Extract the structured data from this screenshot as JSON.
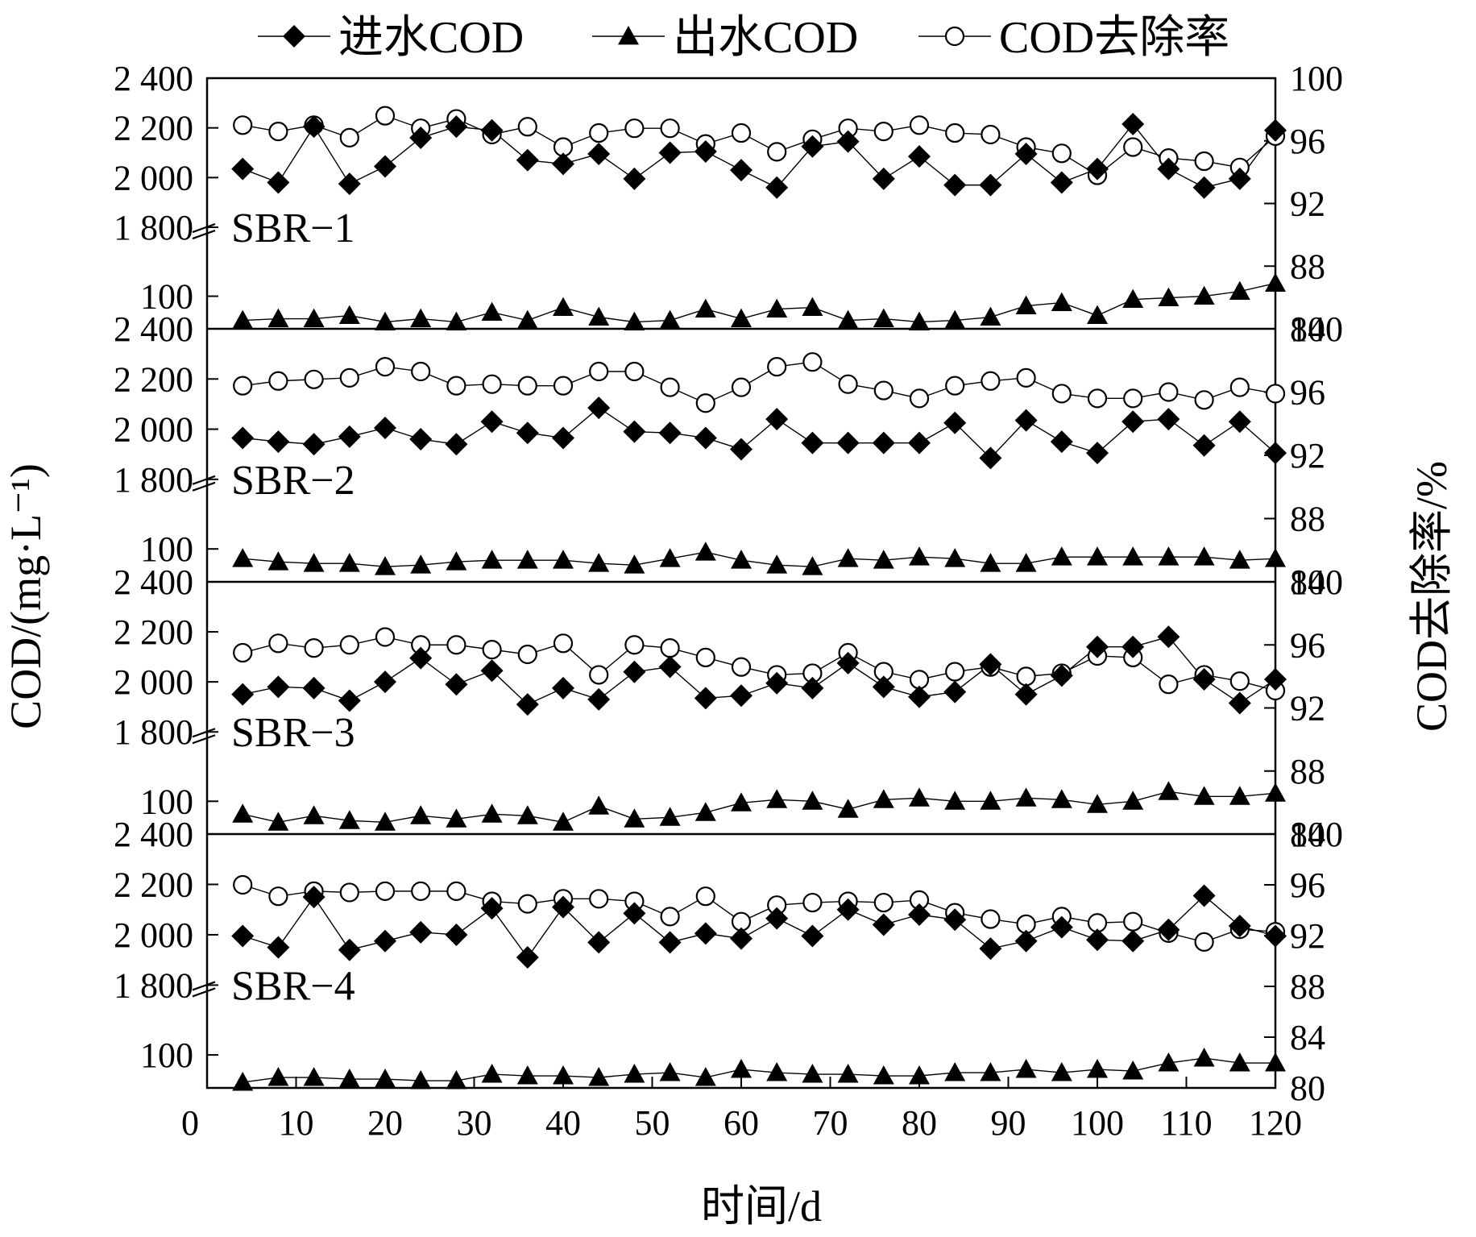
{
  "chart_data": {
    "type": "line",
    "x_axis": {
      "label": "时间/d",
      "range": [
        0,
        120
      ],
      "ticks": [
        0,
        10,
        20,
        30,
        40,
        50,
        60,
        70,
        80,
        90,
        100,
        110,
        120
      ],
      "tick_labels": [
        "0",
        "10",
        "20",
        "30",
        "40",
        "50",
        "60",
        "70",
        "80",
        "90",
        "100",
        "110",
        "120"
      ]
    },
    "y_axis_left": {
      "label": "COD/(mg·L⁻¹)",
      "broken": true,
      "tick_labels": [
        "100",
        "1 800",
        "2 000",
        "2 200",
        "2 400"
      ]
    },
    "y_axis_right": {
      "label": "COD去除率/%",
      "panel_range": [
        84,
        100
      ],
      "bottom_panel_range": [
        80,
        100
      ],
      "tick_labels": [
        "80",
        "84",
        "88",
        "92",
        "96",
        "100"
      ]
    },
    "legend": {
      "placement": "top",
      "entries": [
        {
          "label": "进水COD",
          "marker": "diamond-filled"
        },
        {
          "label": "出水COD",
          "marker": "triangle-filled"
        },
        {
          "label": "COD去除率",
          "marker": "circle-open"
        }
      ]
    },
    "x": [
      4,
      8,
      12,
      16,
      20,
      24,
      28,
      32,
      36,
      40,
      44,
      48,
      52,
      56,
      60,
      64,
      68,
      72,
      76,
      80,
      84,
      88,
      92,
      96,
      100,
      104,
      108,
      112,
      116,
      120
    ],
    "panels": [
      {
        "name": "SBR−1",
        "influent_cod": [
          2035,
          1980,
          2205,
          1975,
          2045,
          2160,
          2205,
          2190,
          2070,
          2055,
          2095,
          1995,
          2100,
          2105,
          2030,
          1960,
          2125,
          2145,
          1995,
          2085,
          1970,
          1970,
          2095,
          1980,
          2035,
          2215,
          2035,
          1960,
          1995,
          2190
        ],
        "effluent_cod": [
          85,
          86,
          86,
          88,
          84,
          86,
          84,
          90,
          85,
          93,
          87,
          84,
          85,
          92,
          86,
          92,
          93,
          85,
          86,
          84,
          85,
          87,
          94,
          96,
          88,
          98,
          99,
          100,
          103,
          108
        ],
        "removal_rate": [
          97.0,
          96.6,
          97.0,
          96.2,
          97.6,
          96.8,
          97.4,
          96.4,
          96.9,
          95.6,
          96.5,
          96.8,
          96.8,
          95.8,
          96.5,
          95.3,
          96.1,
          96.8,
          96.6,
          97.0,
          96.5,
          96.4,
          95.6,
          95.2,
          93.8,
          95.6,
          94.9,
          94.7,
          94.3,
          96.3
        ]
      },
      {
        "name": "SBR−2",
        "influent_cod": [
          1965,
          1950,
          1940,
          1970,
          2005,
          1960,
          1940,
          2030,
          1985,
          1965,
          2085,
          1990,
          1985,
          1965,
          1920,
          2040,
          1945,
          1945,
          1945,
          1945,
          2025,
          1885,
          2035,
          1950,
          1905,
          2030,
          2040,
          1935,
          2030,
          1905
        ],
        "effluent_cod": [
          94,
          92,
          91,
          91,
          89,
          90,
          92,
          93,
          93,
          93,
          91,
          90,
          94,
          98,
          93,
          90,
          89,
          94,
          93,
          95,
          94,
          91,
          91,
          95,
          95,
          95,
          95,
          95,
          93,
          94
        ],
        "removal_rate": [
          96.4,
          96.7,
          96.8,
          96.9,
          97.6,
          97.3,
          96.4,
          96.5,
          96.4,
          96.4,
          97.3,
          97.3,
          96.3,
          95.3,
          96.3,
          97.6,
          97.9,
          96.5,
          96.1,
          95.6,
          96.4,
          96.7,
          96.9,
          95.9,
          95.6,
          95.6,
          96.0,
          95.5,
          96.3,
          95.9
        ]
      },
      {
        "name": "SBR−3",
        "influent_cod": [
          1950,
          1980,
          1975,
          1925,
          2000,
          2095,
          1990,
          2045,
          1910,
          1975,
          1930,
          2040,
          2060,
          1935,
          1945,
          1995,
          1975,
          2075,
          1980,
          1940,
          1960,
          2070,
          1950,
          2025,
          2140,
          2140,
          2180,
          2010,
          1915,
          2010
        ],
        "effluent_cod": [
          92,
          87,
          91,
          88,
          87,
          91,
          89,
          92,
          91,
          87,
          97,
          89,
          90,
          93,
          99,
          101,
          100,
          95,
          101,
          102,
          100,
          100,
          102,
          101,
          98,
          100,
          106,
          103,
          103,
          105
        ],
        "removal_rate": [
          95.5,
          96.1,
          95.8,
          96.0,
          96.5,
          96.0,
          96.0,
          95.7,
          95.4,
          96.1,
          94.1,
          96.0,
          95.8,
          95.2,
          94.6,
          94.1,
          94.2,
          95.5,
          94.3,
          93.8,
          94.3,
          94.6,
          94.0,
          94.2,
          95.3,
          95.2,
          93.5,
          94.1,
          93.7,
          93.1
        ]
      },
      {
        "name": "SBR−4",
        "influent_cod": [
          1995,
          1950,
          2150,
          1940,
          1975,
          2010,
          2000,
          2105,
          1910,
          2110,
          1970,
          2085,
          1970,
          2005,
          1985,
          2065,
          1995,
          2100,
          2040,
          2080,
          2060,
          1945,
          1975,
          2030,
          1980,
          1975,
          2020,
          2155,
          2035,
          1995
        ],
        "effluent_cod": [
          83,
          86,
          86,
          85,
          85,
          84,
          84,
          88,
          87,
          87,
          86,
          88,
          89,
          86,
          91,
          89,
          88,
          88,
          87,
          87,
          89,
          89,
          91,
          89,
          91,
          90,
          95,
          98,
          95,
          95
        ],
        "removal_rate": [
          96.0,
          95.1,
          95.5,
          95.4,
          95.5,
          95.5,
          95.5,
          94.7,
          94.5,
          94.9,
          94.9,
          94.7,
          93.5,
          95.1,
          93.1,
          94.4,
          94.6,
          94.7,
          94.6,
          94.8,
          93.8,
          93.3,
          92.9,
          93.5,
          93.0,
          93.1,
          92.2,
          91.5,
          92.5,
          92.3
        ]
      }
    ]
  }
}
